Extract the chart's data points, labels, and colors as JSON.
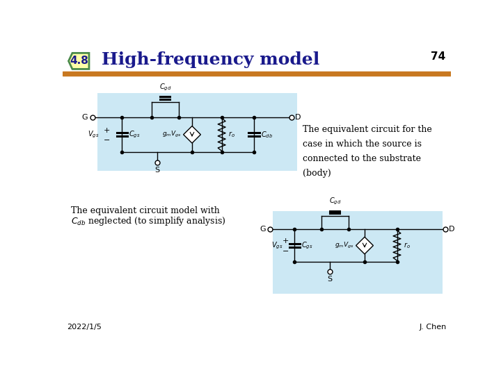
{
  "title_color": "#1a1a8c",
  "header_bar_color": "#C87820",
  "badge_bg": "#FFFFAA",
  "badge_border": "#4a8a4a",
  "circuit_bg": "#cce8f4",
  "page_number": "74",
  "footer_left": "2022/1/5",
  "footer_right": "J. Chen",
  "text1": "The equivalent circuit for the\ncase in which the source is\nconnected to the substrate\n(body)",
  "text2_line1": "The equivalent circuit model with",
  "text2_line2": "$C_{db}$ neglected (to simplify analysis)"
}
